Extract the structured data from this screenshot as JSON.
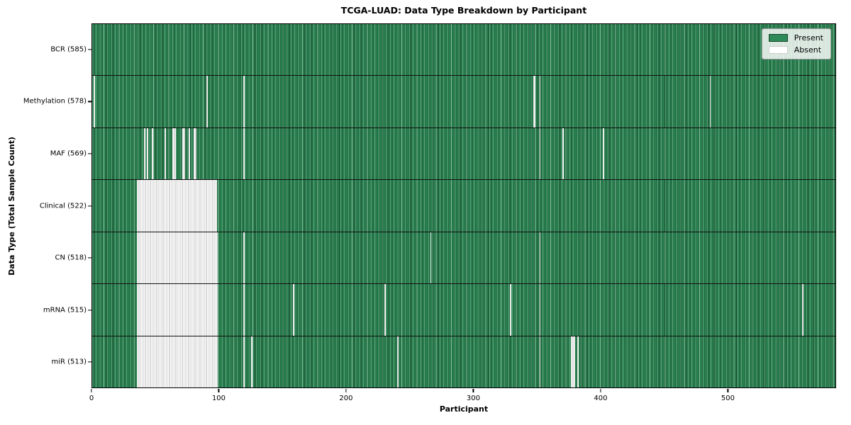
{
  "chart_data": {
    "type": "heatmap",
    "title": "TCGA-LUAD: Data Type Breakdown by Participant",
    "xlabel": "Participant",
    "ylabel": "Data Type (Total Sample Count)",
    "n_participants": 585,
    "xlim": [
      0,
      585
    ],
    "x_ticks": [
      0,
      100,
      200,
      300,
      400,
      500
    ],
    "grid": false,
    "legend_position": "upper right",
    "colors": {
      "present": "#2e8b57",
      "present_edge": "#16452a",
      "absent": "#ffffff",
      "absent_edge": "#b5b5b5",
      "row_divider": "#111111",
      "axes_edge": "#000000",
      "legend_border": "#9a9a9a"
    },
    "legend": [
      {
        "label": "Present",
        "color": "#2e8b57"
      },
      {
        "label": "Absent",
        "color": "#ffffff"
      }
    ],
    "rows": [
      {
        "name": "BCR",
        "label": "BCR (585)",
        "total": 585,
        "absent_count": 0,
        "absent_ranges": []
      },
      {
        "name": "Methylation",
        "label": "Methylation (578)",
        "total": 578,
        "absent_count": 7,
        "absent_ranges": [
          [
            1,
            1
          ],
          [
            90,
            90
          ],
          [
            119,
            119
          ],
          [
            347,
            348
          ],
          [
            352,
            352
          ],
          [
            486,
            486
          ]
        ]
      },
      {
        "name": "MAF",
        "label": "MAF (569)",
        "total": 569,
        "absent_count": 16,
        "absent_ranges": [
          [
            41,
            41
          ],
          [
            43,
            43
          ],
          [
            47,
            47
          ],
          [
            57,
            57
          ],
          [
            63,
            65
          ],
          [
            71,
            72
          ],
          [
            76,
            76
          ],
          [
            80,
            81
          ],
          [
            119,
            119
          ],
          [
            352,
            352
          ],
          [
            370,
            370
          ],
          [
            402,
            402
          ]
        ]
      },
      {
        "name": "Clinical",
        "label": "Clinical (522)",
        "total": 522,
        "absent_count": 63,
        "absent_ranges": [
          [
            35,
            97
          ]
        ]
      },
      {
        "name": "CN",
        "label": "CN (518)",
        "total": 518,
        "absent_count": 67,
        "absent_ranges": [
          [
            35,
            98
          ],
          [
            119,
            119
          ],
          [
            266,
            266
          ],
          [
            352,
            352
          ]
        ]
      },
      {
        "name": "mRNA",
        "label": "mRNA (515)",
        "total": 515,
        "absent_count": 70,
        "absent_ranges": [
          [
            35,
            98
          ],
          [
            119,
            119
          ],
          [
            158,
            158
          ],
          [
            230,
            230
          ],
          [
            329,
            329
          ],
          [
            352,
            352
          ],
          [
            559,
            559
          ]
        ]
      },
      {
        "name": "miR",
        "label": "miR (513)",
        "total": 513,
        "absent_count": 72,
        "absent_ranges": [
          [
            35,
            98
          ],
          [
            119,
            119
          ],
          [
            125,
            125
          ],
          [
            240,
            240
          ],
          [
            352,
            352
          ],
          [
            377,
            379
          ],
          [
            382,
            382
          ]
        ]
      }
    ]
  }
}
